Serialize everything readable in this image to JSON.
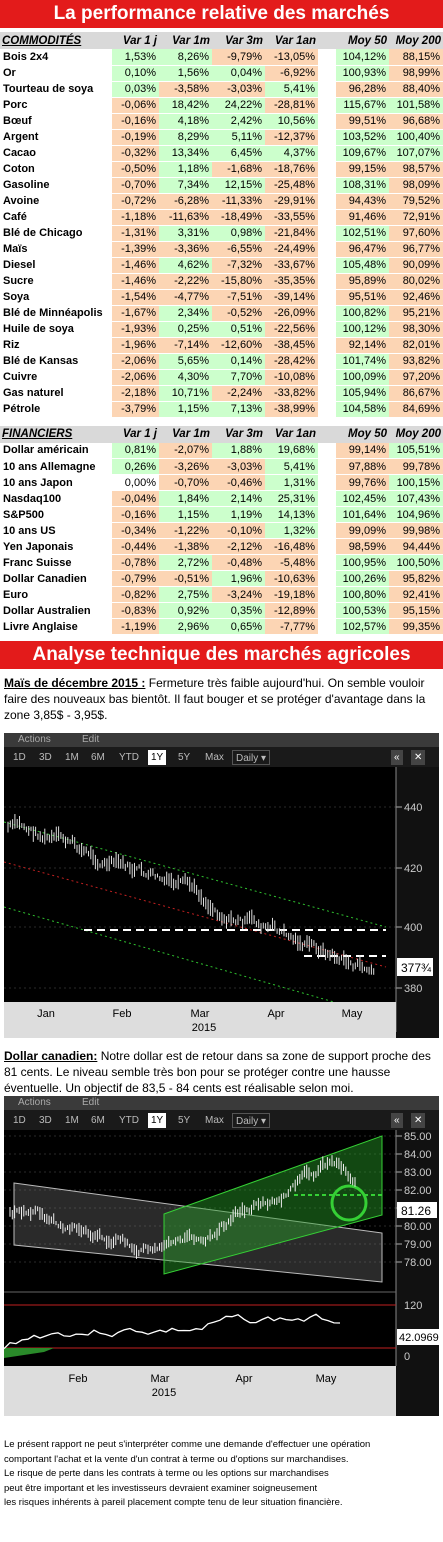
{
  "title": "La performance relative des marchés",
  "commodities": {
    "headers": [
      "COMMODITÉS",
      "Var 1 j",
      "Var 1m",
      "Var 3m",
      "Var 1an",
      "Moy 50",
      "Moy 200"
    ],
    "rows": [
      [
        "Bois 2x4",
        "1,53%",
        "8,26%",
        "-9,79%",
        "-13,05%",
        "104,12%",
        "88,15%"
      ],
      [
        "Or",
        "0,10%",
        "1,56%",
        "0,04%",
        "-6,92%",
        "100,93%",
        "98,99%"
      ],
      [
        "Tourteau de soya",
        "0,03%",
        "-3,58%",
        "-3,03%",
        "5,41%",
        "96,28%",
        "88,40%"
      ],
      [
        "Porc",
        "-0,06%",
        "18,42%",
        "24,22%",
        "-28,81%",
        "115,67%",
        "101,58%"
      ],
      [
        "Bœuf",
        "-0,16%",
        "4,18%",
        "2,42%",
        "10,56%",
        "99,51%",
        "96,68%"
      ],
      [
        "Argent",
        "-0,19%",
        "8,29%",
        "5,11%",
        "-12,37%",
        "103,52%",
        "100,40%"
      ],
      [
        "Cacao",
        "-0,32%",
        "13,34%",
        "6,45%",
        "4,37%",
        "109,67%",
        "107,07%"
      ],
      [
        "Coton",
        "-0,50%",
        "1,18%",
        "-1,68%",
        "-18,76%",
        "99,15%",
        "98,57%"
      ],
      [
        "Gasoline",
        "-0,70%",
        "7,34%",
        "12,15%",
        "-25,48%",
        "108,31%",
        "98,09%"
      ],
      [
        "Avoine",
        "-0,72%",
        "-6,28%",
        "-11,33%",
        "-29,91%",
        "94,43%",
        "79,52%"
      ],
      [
        "Café",
        "-1,18%",
        "-11,63%",
        "-18,49%",
        "-33,55%",
        "91,46%",
        "72,91%"
      ],
      [
        "Blé de Chicago",
        "-1,31%",
        "3,31%",
        "0,98%",
        "-21,84%",
        "102,51%",
        "97,60%"
      ],
      [
        "Maïs",
        "-1,39%",
        "-3,36%",
        "-6,55%",
        "-24,49%",
        "96,47%",
        "96,77%"
      ],
      [
        "Diesel",
        "-1,46%",
        "4,62%",
        "-7,32%",
        "-33,67%",
        "105,48%",
        "90,09%"
      ],
      [
        "Sucre",
        "-1,46%",
        "-2,22%",
        "-15,80%",
        "-35,35%",
        "95,89%",
        "80,02%"
      ],
      [
        "Soya",
        "-1,54%",
        "-4,77%",
        "-7,51%",
        "-39,14%",
        "95,51%",
        "92,46%"
      ],
      [
        "Blé de Minnéapolis",
        "-1,67%",
        "2,34%",
        "-0,52%",
        "-26,09%",
        "100,82%",
        "95,21%"
      ],
      [
        "Huile de soya",
        "-1,93%",
        "0,25%",
        "0,51%",
        "-22,56%",
        "100,12%",
        "98,30%"
      ],
      [
        "Riz",
        "-1,96%",
        "-7,14%",
        "-12,60%",
        "-38,45%",
        "92,14%",
        "82,01%"
      ],
      [
        "Blé de Kansas",
        "-2,06%",
        "5,65%",
        "0,14%",
        "-28,42%",
        "101,74%",
        "93,82%"
      ],
      [
        "Cuivre",
        "-2,06%",
        "4,30%",
        "7,70%",
        "-10,08%",
        "100,09%",
        "97,20%"
      ],
      [
        "Gas naturel",
        "-2,18%",
        "10,71%",
        "-2,24%",
        "-33,82%",
        "105,94%",
        "86,67%"
      ],
      [
        "Pétrole",
        "-3,79%",
        "1,15%",
        "7,13%",
        "-38,99%",
        "104,58%",
        "84,69%"
      ]
    ]
  },
  "financials": {
    "headers": [
      "FINANCIERS",
      "Var 1 j",
      "Var 1m",
      "Var 3m",
      "Var 1an",
      "Moy 50",
      "Moy 200"
    ],
    "rows": [
      [
        "Dollar américain",
        "0,81%",
        "-2,07%",
        "1,88%",
        "19,68%",
        "99,14%",
        "105,51%"
      ],
      [
        "10 ans Allemagne",
        "0,26%",
        "-3,26%",
        "-3,03%",
        "5,41%",
        "97,88%",
        "99,78%"
      ],
      [
        "10 ans Japon",
        "0,00%",
        "-0,70%",
        "-0,46%",
        "1,31%",
        "99,76%",
        "100,15%"
      ],
      [
        "Nasdaq100",
        "-0,04%",
        "1,84%",
        "2,14%",
        "25,31%",
        "102,45%",
        "107,43%"
      ],
      [
        "S&P500",
        "-0,16%",
        "1,15%",
        "1,19%",
        "14,13%",
        "101,64%",
        "104,96%"
      ],
      [
        "10 ans US",
        "-0,34%",
        "-1,22%",
        "-0,10%",
        "1,32%",
        "99,09%",
        "99,98%"
      ],
      [
        "Yen Japonais",
        "-0,44%",
        "-1,38%",
        "-2,12%",
        "-16,48%",
        "98,59%",
        "94,44%"
      ],
      [
        "Franc Suisse",
        "-0,78%",
        "2,72%",
        "-0,48%",
        "-5,48%",
        "100,95%",
        "100,50%"
      ],
      [
        "Dollar Canadien",
        "-0,79%",
        "-0,51%",
        "1,96%",
        "-10,63%",
        "100,26%",
        "95,82%"
      ],
      [
        "Euro",
        "-0,82%",
        "2,75%",
        "-3,24%",
        "-19,18%",
        "100,80%",
        "92,41%"
      ],
      [
        "Dollar Australien",
        "-0,83%",
        "0,92%",
        "0,35%",
        "-12,89%",
        "100,53%",
        "95,15%"
      ],
      [
        "Livre Anglaise",
        "-1,19%",
        "2,96%",
        "0,65%",
        "-7,77%",
        "102,57%",
        "99,35%"
      ]
    ]
  },
  "analysis_title": "Analyse technique des marchés agricoles",
  "mais": {
    "heading": "Maïs de décembre 2015 :",
    "text": " Fermeture très faible aujourd'hui. On semble vouloir faire des nouveaux bas bientôt. Il faut bouger et se protéger d'avantage dans la zone 3,85$ - 3,95$."
  },
  "cad": {
    "heading": "Dollar canadien:",
    "text": " Notre dollar est de retour dans sa zone de support proche des 81 cents. Le niveau semble très bon pour se protéger contre une hausse éventuelle. Un objectif de 83,5 - 84 cents est réalisable selon moi."
  },
  "chart_ui": {
    "actions": "Actions",
    "edit": "Edit",
    "tabs": [
      "1D",
      "3D",
      "1M",
      "6M",
      "YTD",
      "1Y",
      "5Y",
      "Max"
    ],
    "active_tab": "1Y",
    "daily": "Daily",
    "nav": "«",
    "year": "2015"
  },
  "chart1": {
    "months": [
      "Jan",
      "Feb",
      "Mar",
      "Apr",
      "May"
    ],
    "y_ticks": [
      "440",
      "420",
      "400",
      "380"
    ],
    "last": "377¾"
  },
  "chart2": {
    "months": [
      "Feb",
      "Mar",
      "Apr",
      "May"
    ],
    "y_ticks": [
      "85.00",
      "84.00",
      "83.00",
      "82.00",
      "81.00",
      "80.00",
      "79.00",
      "78.00"
    ],
    "last": "81.26",
    "ind_ticks": [
      "120",
      "0"
    ],
    "ind_last": "42.0969"
  },
  "disclaimer": [
    "Le présent rapport ne peut s'interpréter comme une demande d'effectuer une opération",
    "comportant l'achat et la vente d'un contrat à terme ou d'options sur marchandises.",
    "Le risque de perte dans les contrats à terme ou les options sur marchandises",
    "peut être important et les investisseurs devraient examiner soigneusement",
    "les risques inhérents à pareil placement compte tenu de leur situation financière."
  ]
}
